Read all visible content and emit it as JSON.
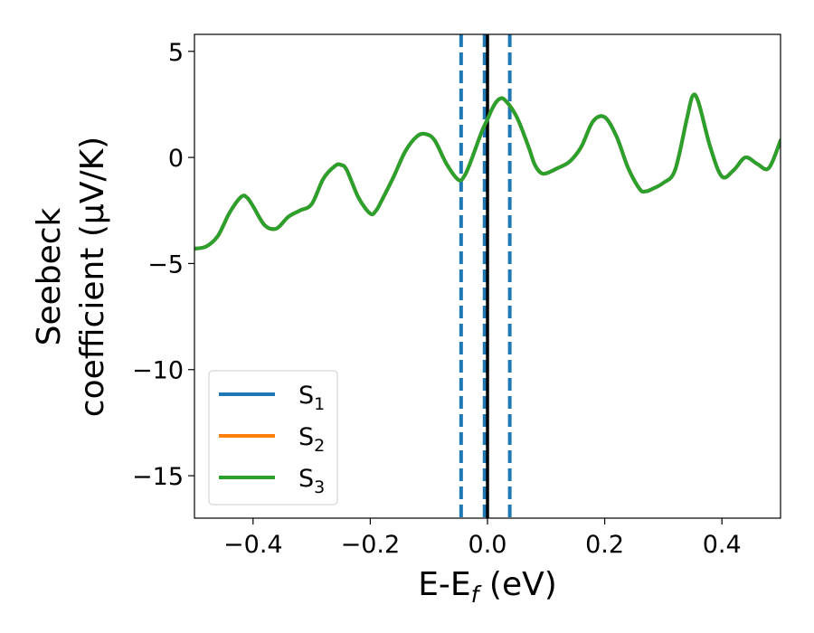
{
  "chart_data": {
    "type": "line",
    "xlabel": "E-E",
    "xlabel_sub": "f",
    "xlabel_unit": " (eV)",
    "ylabel_line1": "Seebeck",
    "ylabel_line2": "coefficient  (μV/K)",
    "xlim": [
      -0.5,
      0.5
    ],
    "ylim": [
      -17,
      5.8
    ],
    "x_ticks": [
      -0.4,
      -0.2,
      0.0,
      0.2,
      0.4
    ],
    "x_tick_labels": [
      "−0.4",
      "−0.2",
      "0.0",
      "0.2",
      "0.4"
    ],
    "y_ticks": [
      5,
      0,
      -5,
      -10,
      -15
    ],
    "y_tick_labels": [
      "5",
      "0",
      "−5",
      "−10",
      "−15"
    ],
    "grid": false,
    "legend_position": "lower-left",
    "vlines": [
      {
        "x": -0.045,
        "style": "dashed",
        "color": "#1f77b4"
      },
      {
        "x": -0.005,
        "style": "dashed",
        "color": "#1f77b4"
      },
      {
        "x": 0.0,
        "style": "solid",
        "color": "#000000"
      },
      {
        "x": 0.038,
        "style": "dashed",
        "color": "#1f77b4"
      }
    ],
    "series": [
      {
        "name": "S",
        "sub": "1",
        "color": "#1f77b4",
        "x": [
          -0.5,
          -0.48,
          -0.46,
          -0.44,
          -0.42,
          -0.41,
          -0.4,
          -0.38,
          -0.36,
          -0.34,
          -0.32,
          -0.3,
          -0.28,
          -0.26,
          -0.25,
          -0.24,
          -0.22,
          -0.2,
          -0.19,
          -0.18,
          -0.16,
          -0.14,
          -0.12,
          -0.105,
          -0.09,
          -0.07,
          -0.05,
          -0.04,
          -0.03,
          -0.01,
          0.0,
          0.01,
          0.02,
          0.03,
          0.05,
          0.07,
          0.08,
          0.09,
          0.1,
          0.12,
          0.14,
          0.16,
          0.18,
          0.2,
          0.22,
          0.24,
          0.26,
          0.27,
          0.28,
          0.3,
          0.32,
          0.34,
          0.35,
          0.36,
          0.38,
          0.4,
          0.42,
          0.44,
          0.46,
          0.48,
          0.5
        ],
        "y": [
          -4.3,
          -4.2,
          -3.7,
          -2.6,
          -1.85,
          -1.9,
          -2.3,
          -3.2,
          -3.35,
          -2.8,
          -2.5,
          -2.2,
          -1.0,
          -0.4,
          -0.35,
          -0.6,
          -1.9,
          -2.65,
          -2.5,
          -2.0,
          -0.9,
          0.3,
          1.0,
          1.1,
          0.8,
          -0.3,
          -1.05,
          -0.9,
          -0.3,
          1.2,
          1.8,
          2.4,
          2.75,
          2.7,
          1.9,
          0.5,
          -0.3,
          -0.7,
          -0.75,
          -0.5,
          -0.2,
          0.5,
          1.7,
          1.9,
          1.0,
          -0.5,
          -1.5,
          -1.6,
          -1.5,
          -1.2,
          -0.6,
          1.8,
          2.9,
          2.6,
          0.5,
          -0.9,
          -0.6,
          0.0,
          -0.3,
          -0.5,
          0.8
        ]
      },
      {
        "name": "S",
        "sub": "2",
        "color": "#ff7f0e",
        "x": [
          -0.5,
          -0.48,
          -0.46,
          -0.44,
          -0.42,
          -0.41,
          -0.4,
          -0.38,
          -0.36,
          -0.34,
          -0.32,
          -0.3,
          -0.28,
          -0.26,
          -0.25,
          -0.24,
          -0.22,
          -0.2,
          -0.19,
          -0.18,
          -0.16,
          -0.14,
          -0.12,
          -0.105,
          -0.09,
          -0.07,
          -0.05,
          -0.04,
          -0.03,
          -0.01,
          0.0,
          0.01,
          0.02,
          0.03,
          0.05,
          0.07,
          0.08,
          0.09,
          0.1,
          0.12,
          0.14,
          0.16,
          0.18,
          0.2,
          0.22,
          0.24,
          0.26,
          0.27,
          0.28,
          0.3,
          0.32,
          0.34,
          0.35,
          0.36,
          0.38,
          0.4,
          0.42,
          0.44,
          0.46,
          0.48,
          0.5
        ],
        "y": [
          -4.3,
          -4.2,
          -3.7,
          -2.6,
          -1.85,
          -1.9,
          -2.3,
          -3.2,
          -3.35,
          -2.8,
          -2.5,
          -2.2,
          -1.0,
          -0.4,
          -0.35,
          -0.6,
          -1.9,
          -2.65,
          -2.5,
          -2.0,
          -0.9,
          0.3,
          1.0,
          1.1,
          0.8,
          -0.3,
          -1.05,
          -0.9,
          -0.3,
          1.2,
          1.8,
          2.4,
          2.75,
          2.7,
          1.9,
          0.5,
          -0.3,
          -0.7,
          -0.75,
          -0.5,
          -0.2,
          0.5,
          1.7,
          1.9,
          1.0,
          -0.5,
          -1.5,
          -1.6,
          -1.5,
          -1.2,
          -0.6,
          1.8,
          2.9,
          2.6,
          0.5,
          -0.9,
          -0.6,
          0.0,
          -0.3,
          -0.5,
          0.8
        ]
      },
      {
        "name": "S",
        "sub": "3",
        "color": "#2ca02c",
        "x": [
          -0.5,
          -0.48,
          -0.46,
          -0.44,
          -0.42,
          -0.41,
          -0.4,
          -0.38,
          -0.36,
          -0.34,
          -0.32,
          -0.3,
          -0.28,
          -0.26,
          -0.25,
          -0.24,
          -0.22,
          -0.2,
          -0.19,
          -0.18,
          -0.16,
          -0.14,
          -0.12,
          -0.105,
          -0.09,
          -0.07,
          -0.05,
          -0.04,
          -0.03,
          -0.01,
          0.0,
          0.01,
          0.02,
          0.03,
          0.05,
          0.07,
          0.08,
          0.09,
          0.1,
          0.12,
          0.14,
          0.16,
          0.18,
          0.2,
          0.22,
          0.24,
          0.26,
          0.27,
          0.28,
          0.3,
          0.32,
          0.34,
          0.35,
          0.36,
          0.38,
          0.4,
          0.42,
          0.44,
          0.46,
          0.48,
          0.5
        ],
        "y": [
          -4.3,
          -4.2,
          -3.7,
          -2.6,
          -1.85,
          -1.9,
          -2.3,
          -3.2,
          -3.35,
          -2.8,
          -2.5,
          -2.2,
          -1.0,
          -0.4,
          -0.35,
          -0.6,
          -1.9,
          -2.65,
          -2.5,
          -2.0,
          -0.9,
          0.3,
          1.0,
          1.1,
          0.8,
          -0.3,
          -1.05,
          -0.9,
          -0.3,
          1.2,
          1.8,
          2.4,
          2.75,
          2.7,
          1.9,
          0.5,
          -0.3,
          -0.7,
          -0.75,
          -0.5,
          -0.2,
          0.5,
          1.7,
          1.9,
          1.0,
          -0.5,
          -1.5,
          -1.6,
          -1.5,
          -1.2,
          -0.6,
          1.8,
          2.9,
          2.6,
          0.5,
          -0.9,
          -0.6,
          0.0,
          -0.3,
          -0.5,
          0.8
        ]
      }
    ]
  }
}
